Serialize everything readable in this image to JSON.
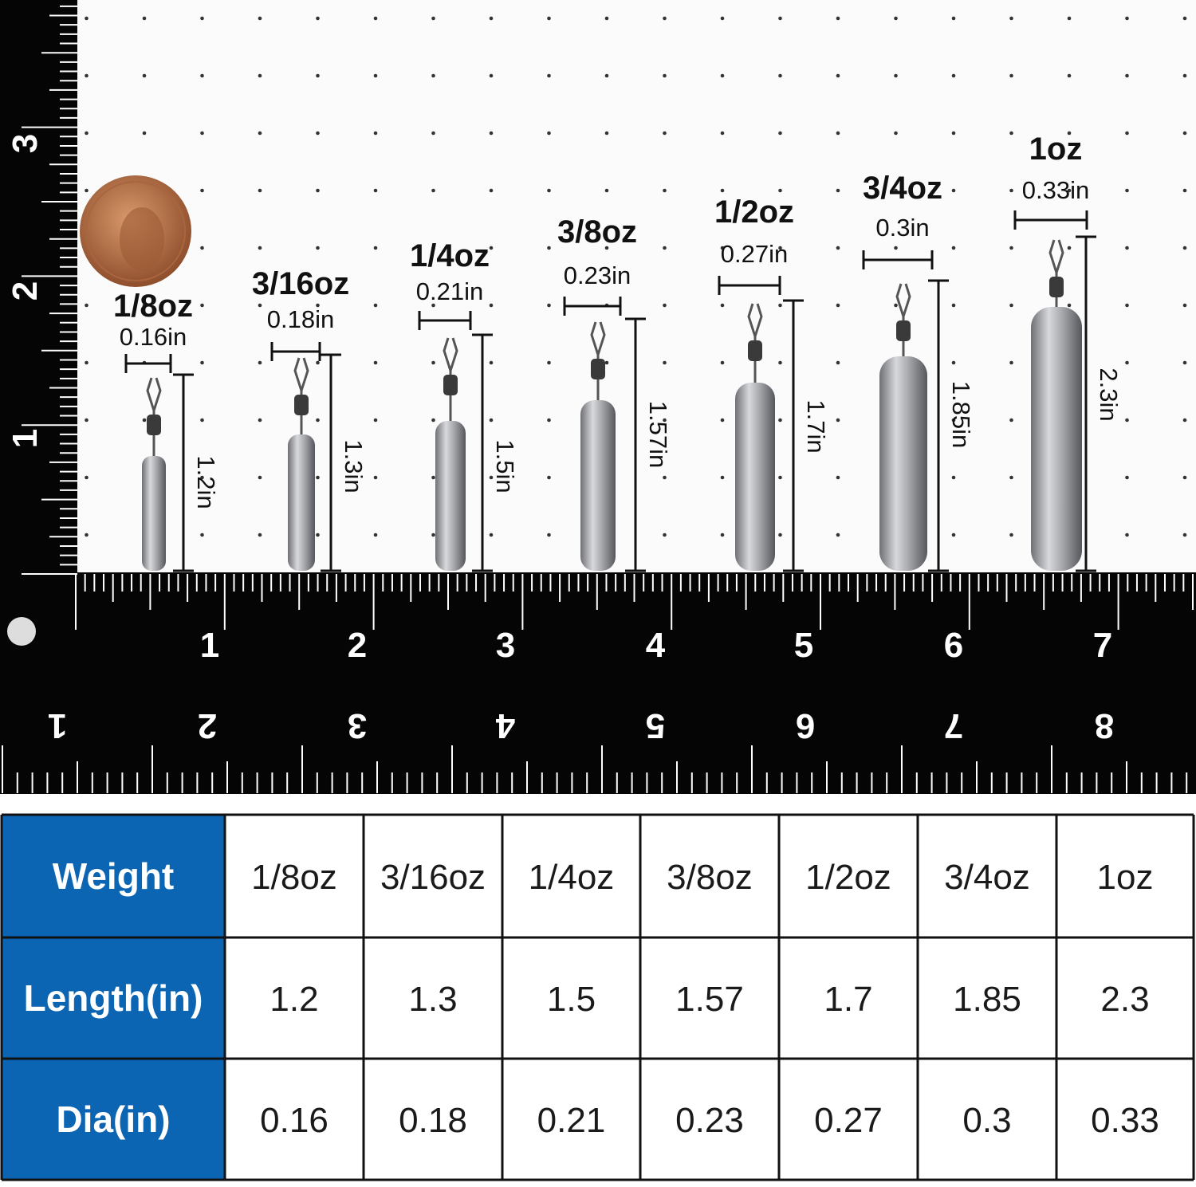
{
  "ruler": {
    "left": [
      "1",
      "2",
      "3"
    ],
    "top": [
      "1",
      "2",
      "3",
      "4",
      "5",
      "6",
      "7"
    ],
    "bottom": [
      "1",
      "2",
      "3",
      "4",
      "5",
      "6",
      "7",
      "8"
    ]
  },
  "sinkers": [
    {
      "weight": "1/8oz",
      "diameter": "0.16in",
      "length": "1.2in"
    },
    {
      "weight": "3/16oz",
      "diameter": "0.18in",
      "length": "1.3in"
    },
    {
      "weight": "1/4oz",
      "diameter": "0.21in",
      "length": "1.5in"
    },
    {
      "weight": "3/8oz",
      "diameter": "0.23in",
      "length": "1.57in"
    },
    {
      "weight": "1/2oz",
      "diameter": "0.27in",
      "length": "1.7in"
    },
    {
      "weight": "3/4oz",
      "diameter": "0.3in",
      "length": "1.85in"
    },
    {
      "weight": "1oz",
      "diameter": "0.33in",
      "length": "2.3in"
    }
  ],
  "table": {
    "row_headers": [
      "Weight",
      "Length(in)",
      "Dia(in)"
    ],
    "rows": [
      [
        "1/8oz",
        "3/16oz",
        "1/4oz",
        "3/8oz",
        "1/2oz",
        "3/4oz",
        "1oz"
      ],
      [
        "1.2",
        "1.3",
        "1.5",
        "1.57",
        "1.7",
        "1.85",
        "2.3"
      ],
      [
        "0.16",
        "0.18",
        "0.21",
        "0.23",
        "0.27",
        "0.3",
        "0.33"
      ]
    ]
  }
}
